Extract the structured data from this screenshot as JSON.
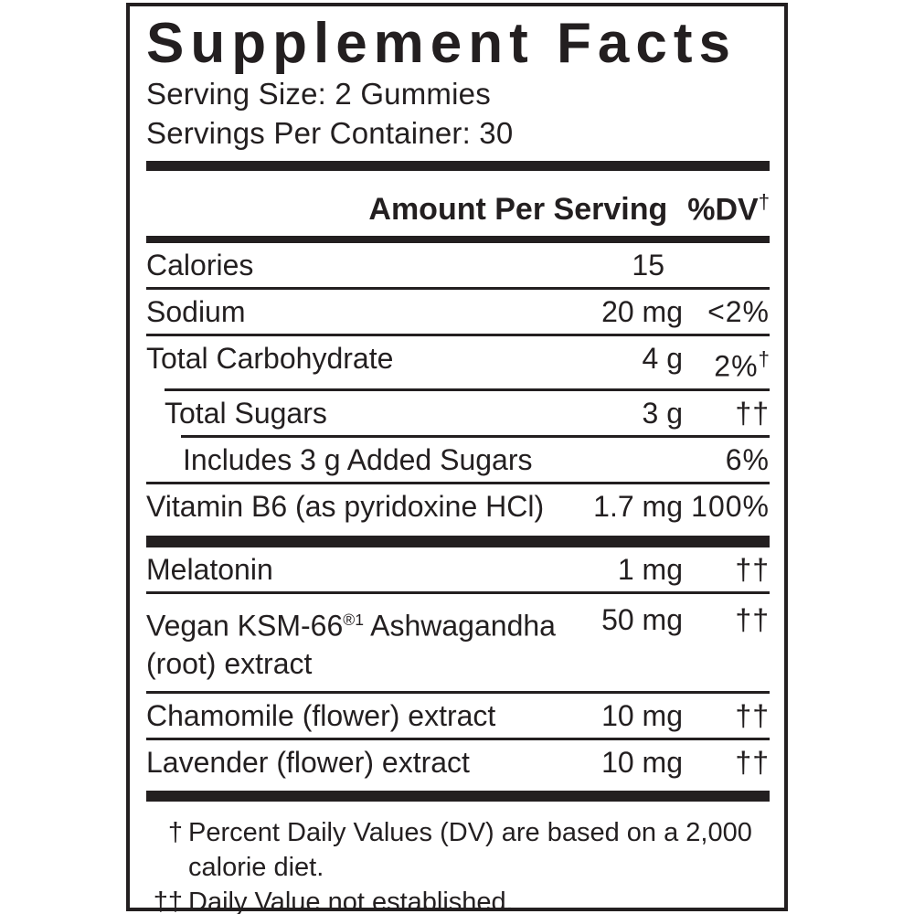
{
  "colors": {
    "ink": "#231f20",
    "background": "#ffffff"
  },
  "label": {
    "title": "Supplement Facts",
    "serving_size": "Serving Size: 2 Gummies",
    "servings_per_container": "Servings Per Container: 30",
    "column_header": {
      "amount": "Amount Per Serving",
      "dv": "%DV",
      "dv_sup": "†"
    },
    "rows": [
      {
        "name": "Calories",
        "amount": "15",
        "dv": ""
      },
      {
        "name": "Sodium",
        "amount": "20 mg",
        "dv": "<2%"
      },
      {
        "name": "Total Carbohydrate",
        "amount": "4 g",
        "dv": "2%",
        "dv_sup": "†"
      },
      {
        "name": "Total Sugars",
        "amount": "3 g",
        "dv": "††"
      },
      {
        "name": "Includes 3 g Added Sugars",
        "amount": "",
        "dv": "6%"
      },
      {
        "name": "Vitamin B6 (as pyridoxine HCl)",
        "amount": "1.7 mg",
        "dv": "100%"
      },
      {
        "name": "Melatonin",
        "amount": "1 mg",
        "dv": "††"
      },
      {
        "name_pre": "Vegan KSM-66",
        "name_sup": "®1",
        "name_post": " Ashwagandha (root) extract",
        "amount": "50 mg",
        "dv": "††"
      },
      {
        "name": "Chamomile (flower) extract",
        "amount": "10 mg",
        "dv": "††"
      },
      {
        "name": "Lavender (flower) extract",
        "amount": "10 mg",
        "dv": "††"
      }
    ],
    "footnotes": [
      {
        "symbol": "†",
        "lines": [
          "Percent Daily Values (DV) are based on a 2,000",
          "calorie diet."
        ]
      },
      {
        "symbol": "††",
        "lines": [
          "Daily Value not established."
        ]
      }
    ]
  }
}
